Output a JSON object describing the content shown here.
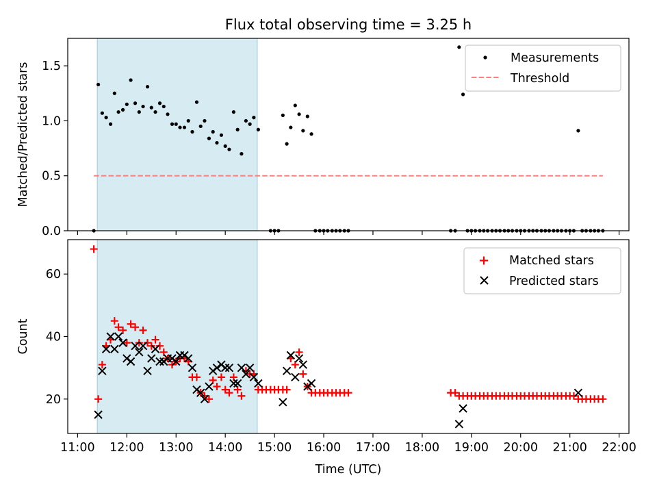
{
  "title": "Flux total observing time = 3.25 h",
  "colors": {
    "measure": "#000000",
    "threshold": "#ff7f7f",
    "matched": "#ff0000",
    "predicted": "#000000",
    "shade": "#add8e6"
  },
  "chart_data": [
    {
      "type": "scatter",
      "panel": "top",
      "ylabel": "Matched/Predicted stars",
      "xlim": [
        10.8,
        22.2
      ],
      "ylim": [
        0,
        1.75
      ],
      "yticks": [
        0.0,
        0.5,
        1.0,
        1.5
      ],
      "ytick_labels": [
        "0.0",
        "0.5",
        "1.0",
        "1.5"
      ],
      "xticks": [
        11,
        12,
        13,
        14,
        15,
        16,
        17,
        18,
        19,
        20,
        21,
        22
      ],
      "shaded_span": [
        11.4,
        14.65
      ],
      "legend": {
        "placement": "top-right",
        "measurements_label": "Measurements",
        "threshold_label": "Threshold"
      },
      "threshold": {
        "value": 0.5,
        "x_range": [
          11.33,
          21.67
        ]
      },
      "series": [
        {
          "name": "Measurements",
          "points": [
            [
              11.33,
              0.0
            ],
            [
              11.42,
              1.33
            ],
            [
              11.5,
              1.07
            ],
            [
              11.58,
              1.03
            ],
            [
              11.67,
              0.97
            ],
            [
              11.75,
              1.25
            ],
            [
              11.83,
              1.08
            ],
            [
              11.92,
              1.1
            ],
            [
              12.0,
              1.15
            ],
            [
              12.08,
              1.37
            ],
            [
              12.17,
              1.16
            ],
            [
              12.25,
              1.08
            ],
            [
              12.33,
              1.13
            ],
            [
              12.42,
              1.31
            ],
            [
              12.5,
              1.12
            ],
            [
              12.58,
              1.08
            ],
            [
              12.67,
              1.16
            ],
            [
              12.75,
              1.13
            ],
            [
              12.83,
              1.06
            ],
            [
              12.92,
              0.97
            ],
            [
              13.0,
              0.97
            ],
            [
              13.08,
              0.94
            ],
            [
              13.17,
              0.94
            ],
            [
              13.25,
              1.0
            ],
            [
              13.33,
              0.9
            ],
            [
              13.42,
              1.17
            ],
            [
              13.5,
              0.95
            ],
            [
              13.58,
              1.0
            ],
            [
              13.67,
              0.84
            ],
            [
              13.75,
              0.9
            ],
            [
              13.83,
              0.8
            ],
            [
              13.92,
              0.87
            ],
            [
              14.0,
              0.77
            ],
            [
              14.08,
              0.74
            ],
            [
              14.17,
              1.08
            ],
            [
              14.25,
              0.92
            ],
            [
              14.33,
              0.7
            ],
            [
              14.42,
              1.0
            ],
            [
              14.5,
              0.97
            ],
            [
              14.58,
              1.03
            ],
            [
              14.67,
              0.92
            ],
            [
              14.92,
              0.0
            ],
            [
              15.0,
              0.0
            ],
            [
              15.08,
              0.0
            ],
            [
              15.17,
              1.05
            ],
            [
              15.25,
              0.79
            ],
            [
              15.33,
              0.94
            ],
            [
              15.42,
              1.14
            ],
            [
              15.5,
              1.06
            ],
            [
              15.58,
              0.91
            ],
            [
              15.67,
              1.04
            ],
            [
              15.75,
              0.88
            ],
            [
              15.83,
              0.0
            ],
            [
              15.92,
              0.0
            ],
            [
              16.0,
              0.0
            ],
            [
              16.08,
              0.0
            ],
            [
              16.17,
              0.0
            ],
            [
              16.25,
              0.0
            ],
            [
              16.33,
              0.0
            ],
            [
              16.42,
              0.0
            ],
            [
              16.5,
              0.0
            ],
            [
              18.58,
              0.0
            ],
            [
              18.67,
              0.0
            ],
            [
              18.75,
              1.67
            ],
            [
              18.83,
              1.24
            ],
            [
              18.92,
              0.0
            ],
            [
              19.0,
              0.0
            ],
            [
              19.08,
              0.0
            ],
            [
              19.17,
              0.0
            ],
            [
              19.25,
              0.0
            ],
            [
              19.33,
              0.0
            ],
            [
              19.42,
              0.0
            ],
            [
              19.5,
              0.0
            ],
            [
              19.58,
              0.0
            ],
            [
              19.67,
              0.0
            ],
            [
              19.75,
              0.0
            ],
            [
              19.83,
              0.0
            ],
            [
              19.92,
              0.0
            ],
            [
              20.0,
              0.0
            ],
            [
              20.08,
              0.0
            ],
            [
              20.17,
              0.0
            ],
            [
              20.25,
              0.0
            ],
            [
              20.33,
              0.0
            ],
            [
              20.42,
              0.0
            ],
            [
              20.5,
              0.0
            ],
            [
              20.58,
              0.0
            ],
            [
              20.67,
              0.0
            ],
            [
              20.75,
              0.0
            ],
            [
              20.83,
              0.0
            ],
            [
              20.92,
              0.0
            ],
            [
              21.0,
              0.0
            ],
            [
              21.08,
              0.0
            ],
            [
              21.17,
              0.91
            ],
            [
              21.25,
              0.0
            ],
            [
              21.33,
              0.0
            ],
            [
              21.42,
              0.0
            ],
            [
              21.5,
              0.0
            ],
            [
              21.58,
              0.0
            ],
            [
              21.67,
              0.0
            ]
          ]
        }
      ]
    },
    {
      "type": "scatter",
      "panel": "bottom",
      "xlabel": "Time (UTC)",
      "ylabel": "Count",
      "xlim": [
        10.8,
        22.2
      ],
      "ylim": [
        9,
        71
      ],
      "yticks": [
        20,
        40,
        60
      ],
      "ytick_labels": [
        "20",
        "40",
        "60"
      ],
      "xticks": [
        11,
        12,
        13,
        14,
        15,
        16,
        17,
        18,
        19,
        20,
        21,
        22
      ],
      "xtick_labels": [
        "11:00",
        "12:00",
        "13:00",
        "14:00",
        "15:00",
        "16:00",
        "17:00",
        "18:00",
        "19:00",
        "20:00",
        "21:00",
        "22:00"
      ],
      "shaded_span": [
        11.4,
        14.65
      ],
      "legend": {
        "placement": "top-right",
        "matched_label": "Matched stars",
        "predicted_label": "Predicted stars"
      },
      "series": [
        {
          "name": "Matched stars",
          "points": [
            [
              11.33,
              68
            ],
            [
              11.42,
              20
            ],
            [
              11.5,
              31
            ],
            [
              11.58,
              37
            ],
            [
              11.67,
              39
            ],
            [
              11.75,
              45
            ],
            [
              11.83,
              43
            ],
            [
              11.92,
              42
            ],
            [
              12.0,
              38
            ],
            [
              12.08,
              44
            ],
            [
              12.17,
              43
            ],
            [
              12.25,
              38
            ],
            [
              12.33,
              42
            ],
            [
              12.42,
              38
            ],
            [
              12.5,
              37
            ],
            [
              12.58,
              39
            ],
            [
              12.67,
              37
            ],
            [
              12.75,
              35
            ],
            [
              12.83,
              33
            ],
            [
              12.92,
              31
            ],
            [
              13.0,
              32
            ],
            [
              13.08,
              33
            ],
            [
              13.17,
              33
            ],
            [
              13.25,
              32
            ],
            [
              13.33,
              27
            ],
            [
              13.42,
              27
            ],
            [
              13.5,
              22
            ],
            [
              13.58,
              21
            ],
            [
              13.67,
              20
            ],
            [
              13.75,
              26
            ],
            [
              13.83,
              24
            ],
            [
              13.92,
              27
            ],
            [
              14.0,
              23
            ],
            [
              14.08,
              22
            ],
            [
              14.17,
              27
            ],
            [
              14.25,
              23
            ],
            [
              14.33,
              21
            ],
            [
              14.42,
              29
            ],
            [
              14.5,
              28
            ],
            [
              14.58,
              28
            ],
            [
              14.67,
              23
            ],
            [
              14.75,
              23
            ],
            [
              14.83,
              23
            ],
            [
              14.92,
              23
            ],
            [
              15.0,
              23
            ],
            [
              15.08,
              23
            ],
            [
              15.17,
              23
            ],
            [
              15.25,
              23
            ],
            [
              15.33,
              33
            ],
            [
              15.42,
              31
            ],
            [
              15.5,
              35
            ],
            [
              15.58,
              28
            ],
            [
              15.67,
              24
            ],
            [
              15.75,
              22
            ],
            [
              15.83,
              22
            ],
            [
              15.92,
              22
            ],
            [
              16.0,
              22
            ],
            [
              16.08,
              22
            ],
            [
              16.17,
              22
            ],
            [
              16.25,
              22
            ],
            [
              16.33,
              22
            ],
            [
              16.42,
              22
            ],
            [
              16.5,
              22
            ],
            [
              18.58,
              22
            ],
            [
              18.67,
              22
            ],
            [
              18.75,
              21
            ],
            [
              18.83,
              21
            ],
            [
              18.92,
              21
            ],
            [
              19.0,
              21
            ],
            [
              19.08,
              21
            ],
            [
              19.17,
              21
            ],
            [
              19.25,
              21
            ],
            [
              19.33,
              21
            ],
            [
              19.42,
              21
            ],
            [
              19.5,
              21
            ],
            [
              19.58,
              21
            ],
            [
              19.67,
              21
            ],
            [
              19.75,
              21
            ],
            [
              19.83,
              21
            ],
            [
              19.92,
              21
            ],
            [
              20.0,
              21
            ],
            [
              20.08,
              21
            ],
            [
              20.17,
              21
            ],
            [
              20.25,
              21
            ],
            [
              20.33,
              21
            ],
            [
              20.42,
              21
            ],
            [
              20.5,
              21
            ],
            [
              20.58,
              21
            ],
            [
              20.67,
              21
            ],
            [
              20.75,
              21
            ],
            [
              20.83,
              21
            ],
            [
              20.92,
              21
            ],
            [
              21.0,
              21
            ],
            [
              21.08,
              21
            ],
            [
              21.17,
              20
            ],
            [
              21.25,
              20
            ],
            [
              21.33,
              20
            ],
            [
              21.42,
              20
            ],
            [
              21.5,
              20
            ],
            [
              21.58,
              20
            ],
            [
              21.67,
              20
            ]
          ]
        },
        {
          "name": "Predicted stars",
          "points": [
            [
              11.42,
              15
            ],
            [
              11.5,
              29
            ],
            [
              11.58,
              36
            ],
            [
              11.67,
              40
            ],
            [
              11.75,
              36
            ],
            [
              11.83,
              40
            ],
            [
              11.92,
              38
            ],
            [
              12.0,
              33
            ],
            [
              12.08,
              32
            ],
            [
              12.17,
              37
            ],
            [
              12.25,
              35
            ],
            [
              12.33,
              37
            ],
            [
              12.42,
              29
            ],
            [
              12.5,
              33
            ],
            [
              12.58,
              36
            ],
            [
              12.67,
              32
            ],
            [
              12.75,
              32
            ],
            [
              12.83,
              33
            ],
            [
              12.92,
              33
            ],
            [
              13.0,
              32
            ],
            [
              13.08,
              34
            ],
            [
              13.17,
              34
            ],
            [
              13.25,
              33
            ],
            [
              13.33,
              30
            ],
            [
              13.42,
              23
            ],
            [
              13.5,
              22
            ],
            [
              13.58,
              20
            ],
            [
              13.67,
              24
            ],
            [
              13.75,
              29
            ],
            [
              13.83,
              30
            ],
            [
              13.92,
              31
            ],
            [
              14.0,
              30
            ],
            [
              14.08,
              30
            ],
            [
              14.17,
              25
            ],
            [
              14.25,
              25
            ],
            [
              14.33,
              30
            ],
            [
              14.42,
              28
            ],
            [
              14.5,
              30
            ],
            [
              14.58,
              27
            ],
            [
              14.67,
              25
            ],
            [
              15.17,
              19
            ],
            [
              15.25,
              29
            ],
            [
              15.33,
              34
            ],
            [
              15.42,
              27
            ],
            [
              15.5,
              33
            ],
            [
              15.58,
              31
            ],
            [
              15.67,
              24
            ],
            [
              15.75,
              25
            ],
            [
              18.75,
              12
            ],
            [
              18.83,
              17
            ],
            [
              21.17,
              22
            ]
          ]
        }
      ]
    }
  ]
}
